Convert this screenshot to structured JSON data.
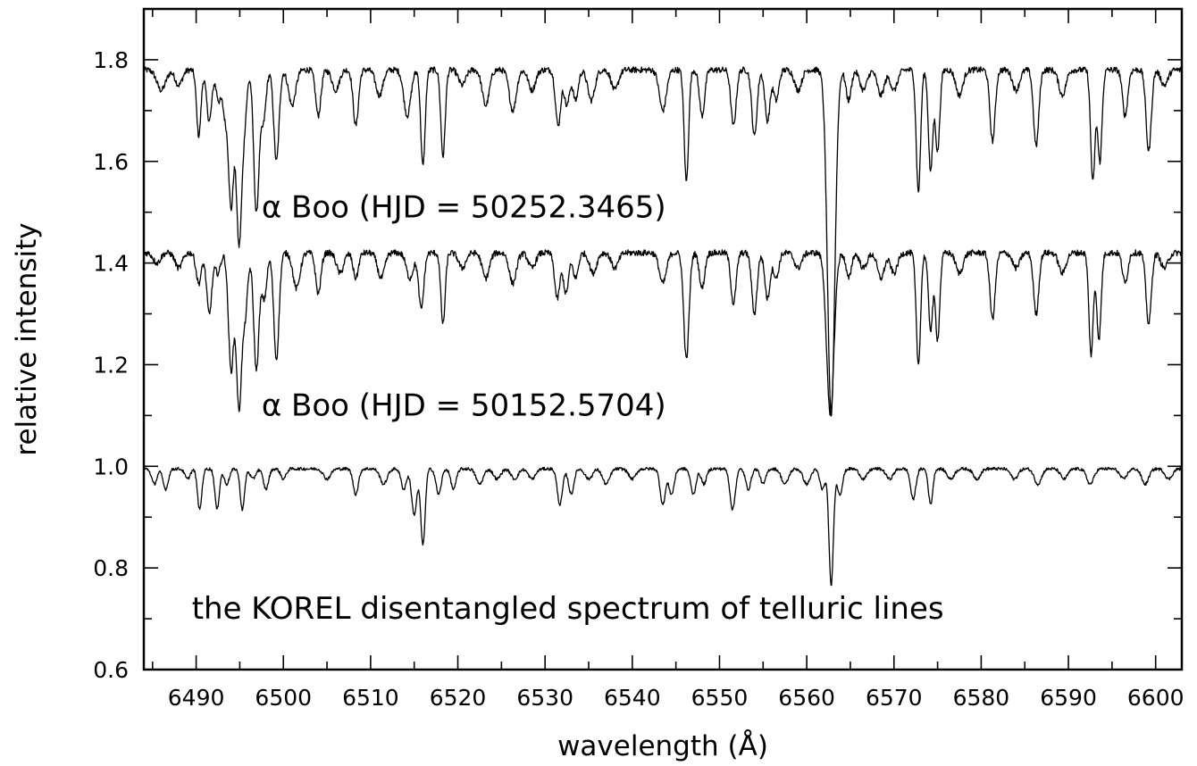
{
  "chart_data": {
    "type": "line",
    "title": "",
    "xlabel": "wavelength (Å)",
    "ylabel": "relative intensity",
    "xlim": [
      6484,
      6603
    ],
    "ylim": [
      0.6,
      1.9
    ],
    "x_ticks": [
      6490,
      6500,
      6510,
      6520,
      6530,
      6540,
      6550,
      6560,
      6570,
      6580,
      6590,
      6600
    ],
    "x_minor_step": 5,
    "y_ticks": [
      0.6,
      0.8,
      1.0,
      1.2,
      1.4,
      1.6,
      1.8
    ],
    "y_minor_step": 0.1,
    "grid": false,
    "annotations": [
      {
        "text": "α Boo (HJD = 50252.3465)",
        "x": 6497.5,
        "y": 1.49
      },
      {
        "text": "α Boo (HJD = 50152.5704)",
        "x": 6497.5,
        "y": 1.1
      },
      {
        "text": "the KOREL disentangled spectrum of telluric lines",
        "x": 6489.5,
        "y": 0.7
      }
    ],
    "series": [
      {
        "continuum": 1.78,
        "lines": [
          [
            6486.0,
            0.04,
            0.5
          ],
          [
            6488.0,
            0.03,
            0.4
          ],
          [
            6490.3,
            0.13,
            0.25
          ],
          [
            6491.5,
            0.1,
            0.3
          ],
          [
            6492.6,
            0.06,
            0.3
          ],
          [
            6493.3,
            0.08,
            0.25
          ],
          [
            6494.0,
            0.27,
            0.3
          ],
          [
            6494.9,
            0.33,
            0.3
          ],
          [
            6495.5,
            0.1,
            0.3
          ],
          [
            6496.9,
            0.28,
            0.3
          ],
          [
            6497.7,
            0.1,
            0.3
          ],
          [
            6499.2,
            0.18,
            0.3
          ],
          [
            6501.0,
            0.07,
            0.4
          ],
          [
            6504.0,
            0.09,
            0.3
          ],
          [
            6506.0,
            0.04,
            0.4
          ],
          [
            6508.3,
            0.11,
            0.3
          ],
          [
            6511.0,
            0.05,
            0.4
          ],
          [
            6514.2,
            0.09,
            0.4
          ],
          [
            6516.0,
            0.19,
            0.25
          ],
          [
            6518.3,
            0.17,
            0.25
          ],
          [
            6520.5,
            0.03,
            0.4
          ],
          [
            6523.2,
            0.07,
            0.4
          ],
          [
            6526.3,
            0.08,
            0.4
          ],
          [
            6528.5,
            0.04,
            0.4
          ],
          [
            6531.5,
            0.11,
            0.3
          ],
          [
            6532.5,
            0.07,
            0.3
          ],
          [
            6533.5,
            0.06,
            0.3
          ],
          [
            6535.3,
            0.06,
            0.4
          ],
          [
            6538.0,
            0.04,
            0.4
          ],
          [
            6543.5,
            0.08,
            0.4
          ],
          [
            6546.2,
            0.22,
            0.25
          ],
          [
            6548.0,
            0.09,
            0.3
          ],
          [
            6551.6,
            0.11,
            0.3
          ],
          [
            6554.0,
            0.13,
            0.3
          ],
          [
            6555.5,
            0.1,
            0.3
          ],
          [
            6556.5,
            0.06,
            0.3
          ],
          [
            6559.0,
            0.04,
            0.4
          ],
          [
            6562.8,
            0.68,
            0.42
          ],
          [
            6564.8,
            0.06,
            0.3
          ],
          [
            6566.5,
            0.04,
            0.4
          ],
          [
            6568.5,
            0.05,
            0.4
          ],
          [
            6570.0,
            0.04,
            0.4
          ],
          [
            6572.8,
            0.24,
            0.25
          ],
          [
            6574.2,
            0.2,
            0.25
          ],
          [
            6575.0,
            0.16,
            0.25
          ],
          [
            6577.5,
            0.05,
            0.4
          ],
          [
            6581.3,
            0.14,
            0.3
          ],
          [
            6584.0,
            0.04,
            0.4
          ],
          [
            6586.3,
            0.15,
            0.3
          ],
          [
            6589.3,
            0.05,
            0.4
          ],
          [
            6592.8,
            0.22,
            0.25
          ],
          [
            6593.6,
            0.18,
            0.25
          ],
          [
            6596.5,
            0.09,
            0.3
          ],
          [
            6599.2,
            0.16,
            0.3
          ],
          [
            6601.0,
            0.03,
            0.4
          ]
        ]
      },
      {
        "continuum": 1.42,
        "lines": [
          [
            6485.5,
            0.02,
            0.4
          ],
          [
            6488.0,
            0.03,
            0.4
          ],
          [
            6490.3,
            0.06,
            0.3
          ],
          [
            6491.5,
            0.12,
            0.3
          ],
          [
            6492.5,
            0.04,
            0.3
          ],
          [
            6494.0,
            0.23,
            0.3
          ],
          [
            6494.9,
            0.3,
            0.3
          ],
          [
            6495.6,
            0.12,
            0.3
          ],
          [
            6496.9,
            0.23,
            0.3
          ],
          [
            6497.8,
            0.09,
            0.3
          ],
          [
            6499.2,
            0.21,
            0.3
          ],
          [
            6501.5,
            0.07,
            0.4
          ],
          [
            6504.0,
            0.08,
            0.3
          ],
          [
            6506.5,
            0.04,
            0.4
          ],
          [
            6508.3,
            0.05,
            0.3
          ],
          [
            6511.2,
            0.05,
            0.4
          ],
          [
            6514.5,
            0.05,
            0.4
          ],
          [
            6515.8,
            0.11,
            0.3
          ],
          [
            6518.3,
            0.14,
            0.25
          ],
          [
            6520.5,
            0.03,
            0.4
          ],
          [
            6523.2,
            0.05,
            0.4
          ],
          [
            6526.3,
            0.06,
            0.4
          ],
          [
            6528.5,
            0.03,
            0.4
          ],
          [
            6531.4,
            0.09,
            0.3
          ],
          [
            6532.4,
            0.08,
            0.3
          ],
          [
            6533.5,
            0.05,
            0.3
          ],
          [
            6535.5,
            0.04,
            0.4
          ],
          [
            6538.0,
            0.03,
            0.4
          ],
          [
            6543.5,
            0.06,
            0.4
          ],
          [
            6546.2,
            0.21,
            0.3
          ],
          [
            6548.0,
            0.07,
            0.3
          ],
          [
            6551.6,
            0.1,
            0.3
          ],
          [
            6554.0,
            0.12,
            0.3
          ],
          [
            6555.5,
            0.09,
            0.3
          ],
          [
            6556.5,
            0.05,
            0.3
          ],
          [
            6559.0,
            0.03,
            0.4
          ],
          [
            6562.7,
            0.32,
            0.42
          ],
          [
            6564.8,
            0.05,
            0.3
          ],
          [
            6566.5,
            0.03,
            0.4
          ],
          [
            6568.5,
            0.05,
            0.4
          ],
          [
            6570.0,
            0.04,
            0.4
          ],
          [
            6572.8,
            0.22,
            0.25
          ],
          [
            6574.2,
            0.15,
            0.25
          ],
          [
            6575.0,
            0.17,
            0.25
          ],
          [
            6577.5,
            0.04,
            0.4
          ],
          [
            6581.3,
            0.13,
            0.3
          ],
          [
            6584.0,
            0.03,
            0.4
          ],
          [
            6586.3,
            0.12,
            0.3
          ],
          [
            6589.3,
            0.04,
            0.4
          ],
          [
            6592.6,
            0.2,
            0.25
          ],
          [
            6593.5,
            0.17,
            0.25
          ],
          [
            6596.5,
            0.06,
            0.3
          ],
          [
            6599.2,
            0.14,
            0.3
          ],
          [
            6601.0,
            0.03,
            0.4
          ]
        ]
      },
      {
        "continuum": 0.995,
        "lines": [
          [
            6485.2,
            0.03,
            0.3
          ],
          [
            6486.5,
            0.04,
            0.3
          ],
          [
            6489.0,
            0.02,
            0.3
          ],
          [
            6490.4,
            0.08,
            0.25
          ],
          [
            6492.4,
            0.08,
            0.25
          ],
          [
            6493.5,
            0.03,
            0.3
          ],
          [
            6495.3,
            0.08,
            0.25
          ],
          [
            6496.5,
            0.02,
            0.3
          ],
          [
            6498.0,
            0.04,
            0.3
          ],
          [
            6500.0,
            0.02,
            0.3
          ],
          [
            6505.0,
            0.02,
            0.4
          ],
          [
            6508.3,
            0.05,
            0.3
          ],
          [
            6511.5,
            0.03,
            0.4
          ],
          [
            6513.8,
            0.04,
            0.3
          ],
          [
            6515.0,
            0.09,
            0.3
          ],
          [
            6516.0,
            0.15,
            0.25
          ],
          [
            6517.8,
            0.05,
            0.3
          ],
          [
            6519.5,
            0.04,
            0.3
          ],
          [
            6522.5,
            0.03,
            0.4
          ],
          [
            6524.5,
            0.02,
            0.4
          ],
          [
            6526.5,
            0.02,
            0.4
          ],
          [
            6528.5,
            0.02,
            0.4
          ],
          [
            6531.7,
            0.07,
            0.3
          ],
          [
            6533.0,
            0.05,
            0.3
          ],
          [
            6535.0,
            0.02,
            0.4
          ],
          [
            6537.0,
            0.03,
            0.4
          ],
          [
            6540.0,
            0.02,
            0.4
          ],
          [
            6543.5,
            0.07,
            0.3
          ],
          [
            6544.5,
            0.05,
            0.3
          ],
          [
            6547.0,
            0.05,
            0.3
          ],
          [
            6548.2,
            0.03,
            0.3
          ],
          [
            6551.5,
            0.08,
            0.3
          ],
          [
            6553.3,
            0.04,
            0.3
          ],
          [
            6555.0,
            0.03,
            0.3
          ],
          [
            6557.5,
            0.03,
            0.4
          ],
          [
            6560.0,
            0.03,
            0.4
          ],
          [
            6561.8,
            0.04,
            0.3
          ],
          [
            6562.8,
            0.23,
            0.25
          ],
          [
            6563.8,
            0.05,
            0.3
          ],
          [
            6566.5,
            0.02,
            0.4
          ],
          [
            6569.5,
            0.02,
            0.4
          ],
          [
            6572.2,
            0.06,
            0.3
          ],
          [
            6574.2,
            0.07,
            0.25
          ],
          [
            6576.5,
            0.02,
            0.4
          ],
          [
            6579.5,
            0.02,
            0.4
          ],
          [
            6583.8,
            0.02,
            0.4
          ],
          [
            6586.5,
            0.03,
            0.4
          ],
          [
            6589.5,
            0.02,
            0.4
          ],
          [
            6592.5,
            0.03,
            0.4
          ],
          [
            6596.3,
            0.02,
            0.4
          ],
          [
            6598.8,
            0.03,
            0.4
          ],
          [
            6601.5,
            0.02,
            0.4
          ]
        ]
      }
    ]
  }
}
